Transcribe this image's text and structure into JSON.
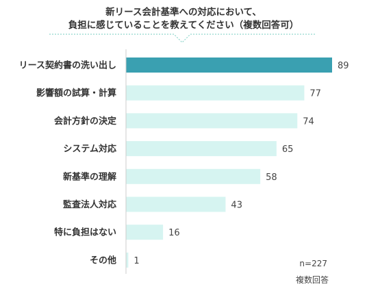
{
  "title": {
    "line1": "新リース会計基準への対応において、",
    "line2": "負担に感じていることを教えてください（複数回答可）"
  },
  "colors": {
    "highlight": "#3aa0b1",
    "bar": "#d6f4f1",
    "axis": "#cccccc",
    "bubble_border": "#8fd6cc"
  },
  "chart_data": {
    "type": "bar",
    "orientation": "horizontal",
    "categories": [
      "リース契約書の洗い出し",
      "影響額の試算・計算",
      "会計方針の決定",
      "システム対応",
      "新基準の理解",
      "監査法人対応",
      "特に負担はない",
      "その他"
    ],
    "values": [
      89,
      77,
      74,
      65,
      58,
      43,
      16,
      1
    ],
    "highlight_category": "リース契約書の洗い出し",
    "xlim": [
      0,
      89
    ],
    "grid": false,
    "legend": "none"
  },
  "notes": {
    "sample_size": "n=227",
    "response_type": "複数回答"
  }
}
